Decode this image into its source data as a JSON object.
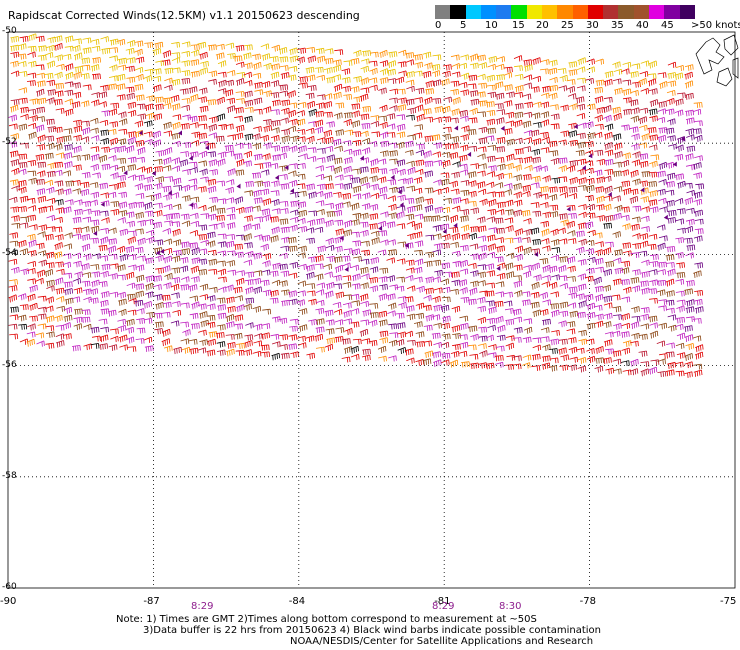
{
  "title": "Rapidscat Corrected Winds(12.5KM) v1.1 20150623 descending",
  "legend": {
    "colors": [
      "#808080",
      "#000000",
      "#00c8ff",
      "#0090ff",
      "#1e7bf0",
      "#00e000",
      "#f0e800",
      "#ffc000",
      "#ff8800",
      "#ff6000",
      "#e00000",
      "#b03030",
      "#8b5a2b",
      "#a0522d",
      "#e000e0",
      "#8000a0",
      "#400060"
    ],
    "labels": [
      "0",
      "5",
      "10",
      "15",
      "20",
      "25",
      "30",
      "35",
      "40",
      "45",
      ">50 knots"
    ]
  },
  "map": {
    "lat_labels": [
      "-50",
      "-52",
      "-54",
      "-56",
      "-58",
      "-60"
    ],
    "lon_labels": [
      "-90",
      "-87",
      "-84",
      "-81",
      "-78",
      "-75"
    ]
  },
  "passes": [
    "8:29",
    "8:29",
    "8:30"
  ],
  "notes": {
    "line1": "Note: 1) Times are GMT 2)Times along bottom correspond to measurement at ~50S",
    "line2": "3)Data buffer is 22 hrs from 20150623 4) Black wind barbs indicate possible contamination",
    "line3": "NOAA/NESDIS/Center for Satellite Applications and Research"
  }
}
